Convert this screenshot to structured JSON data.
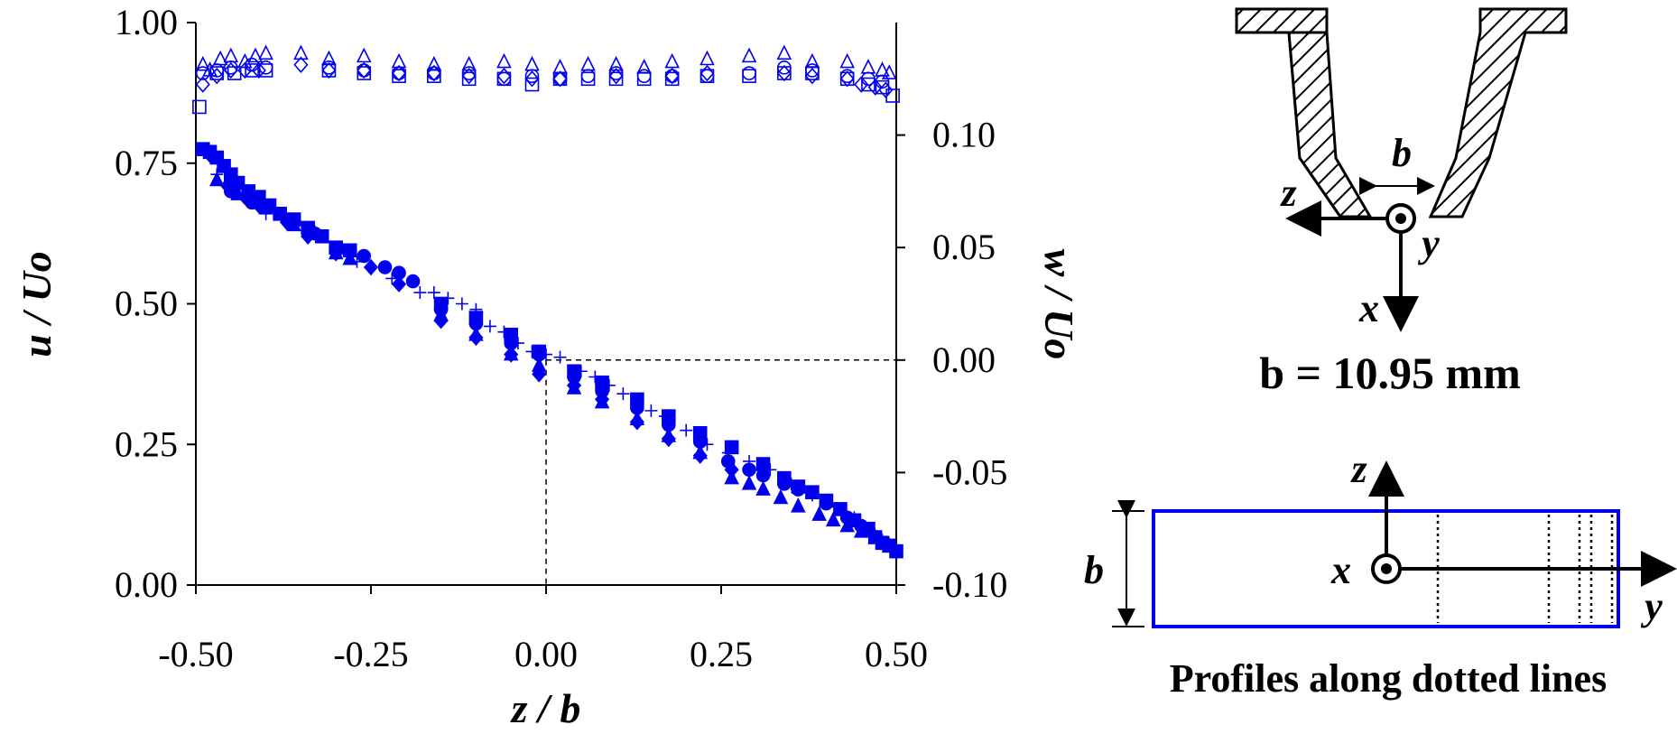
{
  "chart_data": {
    "type": "scatter",
    "xlabel": "z / b",
    "ylabel": "u / Uo",
    "ylabel_right": "w / Uo",
    "xlim": [
      -0.5,
      0.5
    ],
    "ylim": [
      0,
      1
    ],
    "ylim_right": [
      -0.1,
      0.15
    ],
    "x_ticks": [
      "-0.50",
      "-0.25",
      "0.00",
      "0.25",
      "0.50"
    ],
    "y_ticks": [
      "0.00",
      "0.25",
      "0.50",
      "0.75",
      "1.00"
    ],
    "y_ticks_right": [
      "-0.10",
      "-0.05",
      "0.00",
      "0.05",
      "0.10"
    ],
    "marker_color": "#0000ee",
    "reference_line": {
      "x": 0.0,
      "y_right": 0.0
    },
    "series": [
      {
        "axis": "left",
        "marker": "open-triangle",
        "points": [
          [
            -0.49,
            0.925
          ],
          [
            -0.48,
            0.915
          ],
          [
            -0.465,
            0.935
          ],
          [
            -0.45,
            0.94
          ],
          [
            -0.43,
            0.93
          ],
          [
            -0.415,
            0.94
          ],
          [
            -0.4,
            0.945
          ],
          [
            -0.35,
            0.945
          ],
          [
            -0.31,
            0.935
          ],
          [
            -0.26,
            0.94
          ],
          [
            -0.21,
            0.93
          ],
          [
            -0.16,
            0.925
          ],
          [
            -0.11,
            0.925
          ],
          [
            -0.06,
            0.93
          ],
          [
            -0.02,
            0.925
          ],
          [
            0.02,
            0.92
          ],
          [
            0.06,
            0.925
          ],
          [
            0.1,
            0.925
          ],
          [
            0.14,
            0.92
          ],
          [
            0.18,
            0.93
          ],
          [
            0.23,
            0.935
          ],
          [
            0.29,
            0.94
          ],
          [
            0.34,
            0.945
          ],
          [
            0.38,
            0.93
          ],
          [
            0.43,
            0.93
          ],
          [
            0.46,
            0.92
          ],
          [
            0.48,
            0.915
          ],
          [
            0.49,
            0.91
          ]
        ]
      },
      {
        "axis": "left",
        "marker": "open-circle",
        "points": [
          [
            -0.49,
            0.91
          ],
          [
            -0.47,
            0.915
          ],
          [
            -0.45,
            0.92
          ],
          [
            -0.42,
            0.925
          ],
          [
            -0.4,
            0.92
          ],
          [
            -0.31,
            0.92
          ],
          [
            -0.26,
            0.915
          ],
          [
            -0.21,
            0.91
          ],
          [
            -0.16,
            0.91
          ],
          [
            -0.11,
            0.91
          ],
          [
            -0.06,
            0.9
          ],
          [
            -0.02,
            0.905
          ],
          [
            0.02,
            0.9
          ],
          [
            0.06,
            0.905
          ],
          [
            0.1,
            0.91
          ],
          [
            0.14,
            0.905
          ],
          [
            0.18,
            0.905
          ],
          [
            0.23,
            0.905
          ],
          [
            0.29,
            0.91
          ],
          [
            0.34,
            0.92
          ],
          [
            0.38,
            0.915
          ],
          [
            0.43,
            0.905
          ],
          [
            0.46,
            0.9
          ],
          [
            0.48,
            0.895
          ]
        ]
      },
      {
        "axis": "left",
        "marker": "open-square",
        "points": [
          [
            -0.495,
            0.85
          ],
          [
            -0.47,
            0.91
          ],
          [
            -0.445,
            0.91
          ],
          [
            -0.42,
            0.915
          ],
          [
            -0.4,
            0.915
          ],
          [
            -0.31,
            0.915
          ],
          [
            -0.26,
            0.91
          ],
          [
            -0.21,
            0.905
          ],
          [
            -0.16,
            0.905
          ],
          [
            -0.11,
            0.9
          ],
          [
            -0.06,
            0.9
          ],
          [
            -0.02,
            0.89
          ],
          [
            0.02,
            0.9
          ],
          [
            0.06,
            0.9
          ],
          [
            0.1,
            0.9
          ],
          [
            0.14,
            0.9
          ],
          [
            0.18,
            0.9
          ],
          [
            0.23,
            0.905
          ],
          [
            0.29,
            0.905
          ],
          [
            0.34,
            0.91
          ],
          [
            0.38,
            0.91
          ],
          [
            0.43,
            0.9
          ],
          [
            0.46,
            0.89
          ],
          [
            0.48,
            0.885
          ],
          [
            0.495,
            0.87
          ]
        ]
      },
      {
        "axis": "left",
        "marker": "open-diamond",
        "points": [
          [
            -0.49,
            0.89
          ],
          [
            -0.47,
            0.905
          ],
          [
            -0.45,
            0.915
          ],
          [
            -0.43,
            0.915
          ],
          [
            -0.41,
            0.915
          ],
          [
            -0.35,
            0.925
          ],
          [
            -0.31,
            0.915
          ],
          [
            -0.26,
            0.915
          ],
          [
            -0.21,
            0.91
          ],
          [
            -0.16,
            0.91
          ],
          [
            -0.11,
            0.905
          ],
          [
            -0.06,
            0.905
          ],
          [
            -0.02,
            0.9
          ],
          [
            0.02,
            0.9
          ],
          [
            0.1,
            0.905
          ],
          [
            0.18,
            0.905
          ],
          [
            0.23,
            0.91
          ],
          [
            0.34,
            0.91
          ],
          [
            0.38,
            0.905
          ],
          [
            0.43,
            0.9
          ],
          [
            0.45,
            0.89
          ],
          [
            0.47,
            0.885
          ],
          [
            0.485,
            0.88
          ]
        ]
      },
      {
        "axis": "left",
        "marker": "filled-square",
        "points": [
          [
            -0.49,
            0.775
          ],
          [
            -0.48,
            0.77
          ],
          [
            -0.47,
            0.76
          ],
          [
            -0.46,
            0.745
          ],
          [
            -0.45,
            0.73
          ],
          [
            -0.44,
            0.715
          ],
          [
            -0.425,
            0.7
          ],
          [
            -0.41,
            0.69
          ],
          [
            -0.395,
            0.675
          ],
          [
            -0.38,
            0.66
          ],
          [
            -0.36,
            0.65
          ],
          [
            -0.34,
            0.635
          ],
          [
            -0.32,
            0.62
          ],
          [
            -0.3,
            0.6
          ],
          [
            -0.28,
            0.595
          ],
          [
            -0.15,
            0.5
          ],
          [
            -0.1,
            0.475
          ],
          [
            -0.05,
            0.445
          ],
          [
            -0.01,
            0.415
          ],
          [
            0.04,
            0.38
          ],
          [
            0.08,
            0.36
          ],
          [
            0.13,
            0.33
          ],
          [
            0.175,
            0.3
          ],
          [
            0.22,
            0.27
          ],
          [
            0.265,
            0.245
          ],
          [
            0.31,
            0.215
          ],
          [
            0.34,
            0.19
          ],
          [
            0.36,
            0.175
          ],
          [
            0.38,
            0.165
          ],
          [
            0.4,
            0.15
          ],
          [
            0.42,
            0.135
          ],
          [
            0.44,
            0.115
          ],
          [
            0.46,
            0.1
          ],
          [
            0.47,
            0.085
          ],
          [
            0.48,
            0.075
          ],
          [
            0.49,
            0.07
          ],
          [
            0.5,
            0.06
          ]
        ]
      },
      {
        "axis": "left",
        "marker": "filled-circle",
        "points": [
          [
            -0.45,
            0.7
          ],
          [
            -0.42,
            0.68
          ],
          [
            -0.38,
            0.66
          ],
          [
            -0.33,
            0.625
          ],
          [
            -0.3,
            0.6
          ],
          [
            -0.26,
            0.585
          ],
          [
            -0.23,
            0.565
          ],
          [
            -0.21,
            0.555
          ],
          [
            -0.19,
            0.54
          ],
          [
            -0.15,
            0.49
          ],
          [
            -0.1,
            0.465
          ],
          [
            -0.05,
            0.43
          ],
          [
            -0.01,
            0.41
          ],
          [
            0.04,
            0.37
          ],
          [
            0.08,
            0.345
          ],
          [
            0.13,
            0.315
          ],
          [
            0.175,
            0.285
          ],
          [
            0.22,
            0.255
          ],
          [
            0.26,
            0.22
          ],
          [
            0.29,
            0.205
          ],
          [
            0.31,
            0.195
          ],
          [
            0.34,
            0.18
          ],
          [
            0.36,
            0.17
          ],
          [
            0.4,
            0.145
          ],
          [
            0.43,
            0.12
          ],
          [
            0.45,
            0.105
          ]
        ]
      },
      {
        "axis": "left",
        "marker": "filled-triangle",
        "points": [
          [
            -0.47,
            0.72
          ],
          [
            -0.44,
            0.695
          ],
          [
            -0.4,
            0.67
          ],
          [
            -0.36,
            0.64
          ],
          [
            -0.33,
            0.625
          ],
          [
            -0.3,
            0.59
          ],
          [
            -0.28,
            0.58
          ],
          [
            -0.15,
            0.48
          ],
          [
            -0.1,
            0.445
          ],
          [
            -0.05,
            0.41
          ],
          [
            -0.01,
            0.39
          ],
          [
            0.04,
            0.35
          ],
          [
            0.08,
            0.325
          ],
          [
            0.13,
            0.295
          ],
          [
            0.175,
            0.265
          ],
          [
            0.22,
            0.235
          ],
          [
            0.265,
            0.19
          ],
          [
            0.29,
            0.18
          ],
          [
            0.31,
            0.17
          ],
          [
            0.335,
            0.155
          ],
          [
            0.36,
            0.14
          ],
          [
            0.39,
            0.125
          ],
          [
            0.41,
            0.115
          ],
          [
            0.43,
            0.105
          ],
          [
            0.45,
            0.095
          ],
          [
            0.47,
            0.085
          ],
          [
            0.49,
            0.07
          ]
        ]
      },
      {
        "axis": "left",
        "marker": "filled-diamond",
        "points": [
          [
            -0.48,
            0.765
          ],
          [
            -0.455,
            0.71
          ],
          [
            -0.43,
            0.69
          ],
          [
            -0.41,
            0.675
          ],
          [
            -0.37,
            0.645
          ],
          [
            -0.34,
            0.62
          ],
          [
            -0.3,
            0.59
          ],
          [
            -0.25,
            0.565
          ],
          [
            -0.21,
            0.535
          ],
          [
            -0.15,
            0.47
          ],
          [
            -0.1,
            0.44
          ],
          [
            -0.05,
            0.41
          ],
          [
            -0.01,
            0.375
          ],
          [
            0.04,
            0.355
          ],
          [
            0.08,
            0.33
          ],
          [
            0.13,
            0.29
          ],
          [
            0.175,
            0.26
          ],
          [
            0.22,
            0.23
          ],
          [
            0.265,
            0.205
          ]
        ]
      },
      {
        "axis": "left",
        "marker": "plus",
        "points": [
          [
            -0.47,
            0.73
          ],
          [
            -0.4,
            0.66
          ],
          [
            -0.34,
            0.62
          ],
          [
            -0.27,
            0.575
          ],
          [
            -0.22,
            0.545
          ],
          [
            -0.18,
            0.52
          ],
          [
            -0.16,
            0.52
          ],
          [
            -0.14,
            0.51
          ],
          [
            -0.12,
            0.5
          ],
          [
            -0.1,
            0.49
          ],
          [
            -0.08,
            0.46
          ],
          [
            -0.06,
            0.45
          ],
          [
            -0.04,
            0.43
          ],
          [
            -0.02,
            0.415
          ],
          [
            0.0,
            0.41
          ],
          [
            0.02,
            0.405
          ],
          [
            0.05,
            0.38
          ],
          [
            0.07,
            0.37
          ],
          [
            0.09,
            0.355
          ],
          [
            0.11,
            0.34
          ],
          [
            0.13,
            0.325
          ],
          [
            0.15,
            0.31
          ],
          [
            0.17,
            0.3
          ],
          [
            0.2,
            0.275
          ],
          [
            0.23,
            0.25
          ],
          [
            0.26,
            0.235
          ],
          [
            0.29,
            0.22
          ],
          [
            0.32,
            0.205
          ],
          [
            0.35,
            0.18
          ],
          [
            0.38,
            0.16
          ],
          [
            0.4,
            0.15
          ],
          [
            0.44,
            0.12
          ],
          [
            0.46,
            0.1
          ],
          [
            0.48,
            0.08
          ]
        ]
      }
    ]
  },
  "nozzle_diagram": {
    "gap_label": "b",
    "axis_z": "z",
    "axis_y": "y",
    "axis_x": "x",
    "caption": "b = 10.95 mm"
  },
  "section_diagram": {
    "height_label": "b",
    "axis_z": "z",
    "axis_x": "x",
    "axis_y": "y",
    "caption": "Profiles along dotted lines",
    "outline_color": "#0000ee"
  }
}
